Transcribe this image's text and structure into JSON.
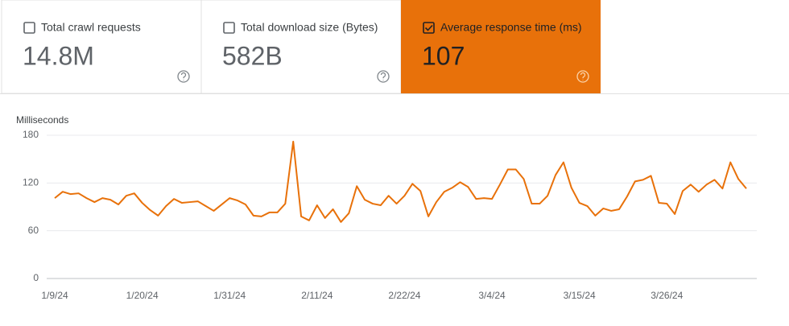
{
  "cards": [
    {
      "label": "Total crawl requests",
      "value": "14.8M",
      "checked": false
    },
    {
      "label": "Total download size (Bytes)",
      "value": "582B",
      "checked": false
    },
    {
      "label": "Average response time (ms)",
      "value": "107",
      "checked": true,
      "color": "#e8710a"
    }
  ],
  "chart_data": {
    "type": "line",
    "y_label": "Milliseconds",
    "color": "#e8710a",
    "ylim": [
      0,
      180
    ],
    "yticks": [
      0,
      60,
      120,
      180
    ],
    "grid": true,
    "categories": [
      "1/9/24",
      null,
      null,
      null,
      null,
      null,
      null,
      null,
      null,
      null,
      null,
      "1/20/24",
      null,
      null,
      null,
      null,
      null,
      null,
      null,
      null,
      null,
      null,
      "1/31/24",
      null,
      null,
      null,
      null,
      null,
      null,
      null,
      null,
      null,
      null,
      "2/11/24",
      null,
      null,
      null,
      null,
      null,
      null,
      null,
      null,
      null,
      null,
      "2/22/24",
      null,
      null,
      null,
      null,
      null,
      null,
      null,
      null,
      null,
      null,
      "3/4/24",
      null,
      null,
      null,
      null,
      null,
      null,
      null,
      null,
      null,
      null,
      "3/15/24",
      null,
      null,
      null,
      null,
      null,
      null,
      null,
      null,
      null,
      null,
      "3/26/24",
      null,
      null,
      null,
      null,
      null,
      null,
      null,
      null,
      null,
      null
    ],
    "values": [
      101,
      109,
      106,
      107,
      101,
      96,
      101,
      99,
      93,
      104,
      107,
      95,
      86,
      79,
      91,
      100,
      95,
      96,
      97,
      91,
      85,
      93,
      101,
      98,
      93,
      79,
      78,
      83,
      83,
      94,
      172,
      78,
      73,
      92,
      76,
      87,
      71,
      82,
      116,
      99,
      94,
      92,
      104,
      94,
      104,
      119,
      110,
      78,
      96,
      109,
      114,
      121,
      115,
      100,
      101,
      100,
      118,
      137,
      137,
      125,
      94,
      94,
      104,
      130,
      146,
      114,
      95,
      91,
      79,
      88,
      85,
      87,
      103,
      122,
      124,
      129,
      95,
      94,
      81,
      110,
      118,
      109,
      118,
      124,
      113,
      146,
      125,
      113
    ]
  }
}
